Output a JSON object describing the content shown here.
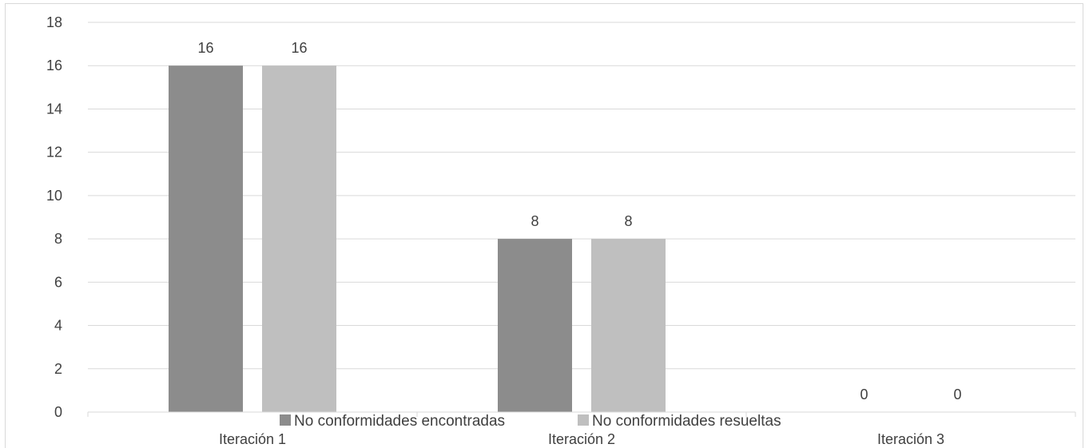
{
  "chart_data": {
    "type": "bar",
    "title": "",
    "xlabel": "",
    "ylabel": "",
    "categories": [
      "Iteración 1",
      "Iteración 2",
      "Iteración 3"
    ],
    "series": [
      {
        "name": "No conformidades encontradas",
        "values": [
          16,
          8,
          0
        ],
        "color": "#8c8c8c"
      },
      {
        "name": "No conformidades resueltas",
        "values": [
          16,
          8,
          0
        ],
        "color": "#bfbfbf"
      }
    ],
    "ylim": [
      0,
      18
    ],
    "yticks": [
      0,
      2,
      4,
      6,
      8,
      10,
      12,
      14,
      16,
      18
    ],
    "grid": true,
    "legend_position": "bottom",
    "data_labels": true
  }
}
